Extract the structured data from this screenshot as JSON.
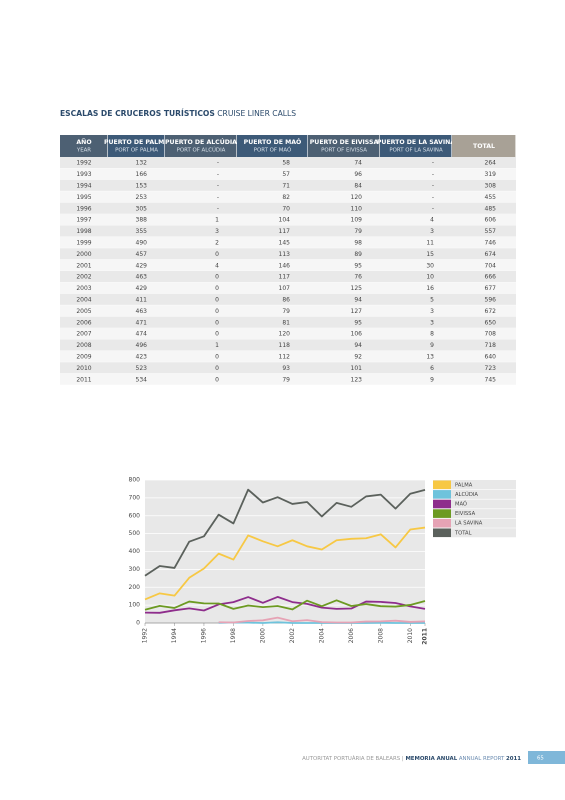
{
  "header": {
    "title": "ESCALAS DE CRUCEROS TURÍSTICOS",
    "subtitle": "CRUISE LINER CALLS"
  },
  "table": {
    "columns": [
      {
        "label": "AÑO",
        "sublabel": "YEAR"
      },
      {
        "label": "PUERTO DE PALMA",
        "sublabel": "PORT OF PALMA"
      },
      {
        "label": "PUERTO DE ALCÚDIA",
        "sublabel": "PORT OF ALCÚDIA"
      },
      {
        "label": "PUERTO DE MAÓ",
        "sublabel": "PORT OF MAÓ"
      },
      {
        "label": "PUERTO DE EIVISSA",
        "sublabel": "PORT OF EIVISSA"
      },
      {
        "label": "PUERTO DE LA SAVINA",
        "sublabel": "PORT OF LA SAVINA"
      },
      {
        "label": "TOTAL"
      }
    ],
    "rows": [
      [
        1992,
        132,
        "-",
        58,
        74,
        "-",
        264
      ],
      [
        1993,
        166,
        "-",
        57,
        96,
        "-",
        319
      ],
      [
        1994,
        153,
        "-",
        71,
        84,
        "-",
        308
      ],
      [
        1995,
        253,
        "-",
        82,
        120,
        "-",
        455
      ],
      [
        1996,
        305,
        "-",
        70,
        110,
        "-",
        485
      ],
      [
        1997,
        388,
        1,
        104,
        109,
        4,
        606
      ],
      [
        1998,
        355,
        3,
        117,
        79,
        3,
        557
      ],
      [
        1999,
        490,
        2,
        145,
        98,
        11,
        746
      ],
      [
        2000,
        457,
        0,
        113,
        89,
        15,
        674
      ],
      [
        2001,
        429,
        4,
        146,
        95,
        30,
        704
      ],
      [
        2002,
        463,
        0,
        117,
        76,
        10,
        666
      ],
      [
        2003,
        429,
        0,
        107,
        125,
        16,
        677
      ],
      [
        2004,
        411,
        0,
        86,
        94,
        5,
        596
      ],
      [
        2005,
        463,
        0,
        79,
        127,
        3,
        672
      ],
      [
        2006,
        471,
        0,
        81,
        95,
        3,
        650
      ],
      [
        2007,
        474,
        0,
        120,
        106,
        8,
        708
      ],
      [
        2008,
        496,
        1,
        118,
        94,
        9,
        718
      ],
      [
        2009,
        423,
        0,
        112,
        92,
        13,
        640
      ],
      [
        2010,
        523,
        0,
        93,
        101,
        6,
        723
      ],
      [
        2011,
        534,
        0,
        79,
        123,
        9,
        745
      ]
    ]
  },
  "chart_data": {
    "type": "line",
    "x": [
      1992,
      1993,
      1994,
      1995,
      1996,
      1997,
      1998,
      1999,
      2000,
      2001,
      2002,
      2003,
      2004,
      2005,
      2006,
      2007,
      2008,
      2009,
      2010,
      2011
    ],
    "series": [
      {
        "name": "PALMA",
        "color": "#f7c844",
        "values": [
          132,
          166,
          153,
          253,
          305,
          388,
          355,
          490,
          457,
          429,
          463,
          429,
          411,
          463,
          471,
          474,
          496,
          423,
          523,
          534
        ]
      },
      {
        "name": "ALCÚDIA",
        "color": "#6ec3dc",
        "values": [
          null,
          null,
          null,
          null,
          null,
          1,
          3,
          2,
          0,
          4,
          0,
          0,
          0,
          0,
          0,
          0,
          1,
          0,
          0,
          0
        ]
      },
      {
        "name": "MAÓ",
        "color": "#8e2d8c",
        "values": [
          58,
          57,
          71,
          82,
          70,
          104,
          117,
          145,
          113,
          146,
          117,
          107,
          86,
          79,
          81,
          120,
          118,
          112,
          93,
          79
        ]
      },
      {
        "name": "EIVISSA",
        "color": "#6c9a22",
        "values": [
          74,
          96,
          84,
          120,
          110,
          109,
          79,
          98,
          89,
          95,
          76,
          125,
          94,
          127,
          95,
          106,
          94,
          92,
          101,
          123
        ]
      },
      {
        "name": "LA SAVINA",
        "color": "#e6a3b5",
        "values": [
          null,
          null,
          null,
          null,
          null,
          4,
          3,
          11,
          15,
          30,
          10,
          16,
          5,
          3,
          3,
          8,
          9,
          13,
          6,
          9
        ]
      },
      {
        "name": "TOTAL",
        "color": "#5b615c",
        "values": [
          264,
          319,
          308,
          455,
          485,
          606,
          557,
          746,
          674,
          704,
          666,
          677,
          596,
          672,
          650,
          708,
          718,
          640,
          723,
          745
        ]
      }
    ],
    "xlim": [
      1992,
      2011
    ],
    "xticks": [
      1992,
      1994,
      1996,
      1998,
      2000,
      2002,
      2004,
      2006,
      2008,
      2010,
      2011
    ],
    "ylim": [
      0,
      800
    ],
    "yticks": [
      0,
      100,
      200,
      300,
      400,
      500,
      600,
      700,
      800
    ],
    "grid": true
  },
  "footer": {
    "org": "AUTORITAT PORTUÀRIA DE BALEARS",
    "separator": "|",
    "report": "MEMORIA ANUAL",
    "report_en": "ANNUAL REPORT",
    "year": "2011",
    "page": "65"
  }
}
